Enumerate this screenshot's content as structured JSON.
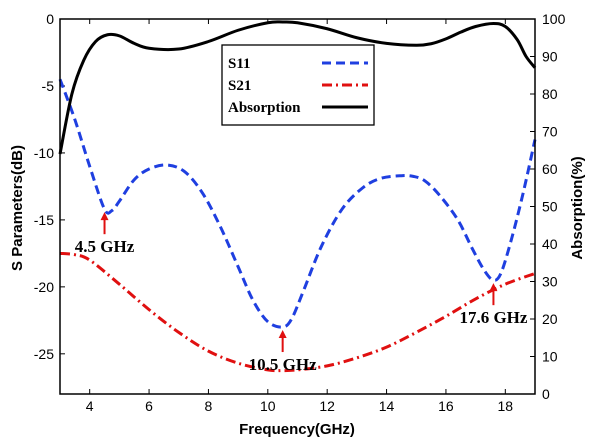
{
  "chart_data": {
    "type": "line",
    "xlabel": "Frequency(GHz)",
    "ylabel_left": "S Parameters(dB)",
    "ylabel_right": "Absorption(%)",
    "xlim": [
      3,
      19
    ],
    "ylim_left": [
      -28,
      0
    ],
    "ylim_right": [
      0,
      100
    ],
    "x_ticks": [
      4,
      6,
      8,
      10,
      12,
      14,
      16,
      18
    ],
    "y_left_ticks": [
      0,
      -5,
      -10,
      -15,
      -20,
      -25
    ],
    "y_right_ticks": [
      0,
      10,
      20,
      30,
      40,
      50,
      60,
      70,
      80,
      90,
      100
    ],
    "grid": false,
    "legend_placement": "top-center",
    "series": [
      {
        "name": "S11",
        "axis": "left",
        "color": "#1f3fe0",
        "style": "dashed",
        "x": [
          3.0,
          3.5,
          4.0,
          4.5,
          4.75,
          5.0,
          5.5,
          6.0,
          6.6,
          7.2,
          7.8,
          8.4,
          9.0,
          9.5,
          10.0,
          10.5,
          10.8,
          11.2,
          11.8,
          12.5,
          13.2,
          13.8,
          14.5,
          14.9,
          15.3,
          15.8,
          16.4,
          16.9,
          17.3,
          17.6,
          17.85,
          18.2,
          18.6,
          19.0
        ],
        "y": [
          -4.5,
          -7.5,
          -11.0,
          -14.2,
          -14.3,
          -13.6,
          -12.0,
          -11.2,
          -10.9,
          -11.4,
          -13.0,
          -15.5,
          -18.5,
          -21.0,
          -22.6,
          -23.0,
          -22.4,
          -20.3,
          -17.0,
          -14.2,
          -12.6,
          -11.9,
          -11.7,
          -11.75,
          -12.1,
          -13.2,
          -15.0,
          -17.2,
          -18.8,
          -19.5,
          -19.0,
          -16.5,
          -13.0,
          -9.0
        ]
      },
      {
        "name": "S21",
        "axis": "left",
        "color": "#e01010",
        "style": "dash-dot",
        "x": [
          3.0,
          3.5,
          4.0,
          5.0,
          6.0,
          7.0,
          8.0,
          9.0,
          10.0,
          10.5,
          11.0,
          12.0,
          13.0,
          14.0,
          15.0,
          16.0,
          17.0,
          18.0,
          19.0
        ],
        "y": [
          -17.5,
          -17.6,
          -18.0,
          -19.8,
          -21.7,
          -23.4,
          -24.8,
          -25.7,
          -26.2,
          -26.25,
          -26.2,
          -25.9,
          -25.3,
          -24.5,
          -23.4,
          -22.2,
          -20.9,
          -19.8,
          -19.0
        ]
      },
      {
        "name": "Absorption",
        "axis": "right",
        "color": "#000000",
        "style": "solid",
        "x": [
          3.0,
          3.4,
          3.8,
          4.2,
          4.6,
          5.0,
          5.5,
          6.0,
          7.0,
          8.0,
          9.0,
          10.0,
          10.5,
          11.0,
          12.0,
          13.0,
          14.0,
          15.0,
          15.5,
          16.0,
          16.5,
          17.0,
          17.6,
          18.0,
          18.4,
          18.7,
          19.0
        ],
        "y": [
          64.0,
          80.0,
          89.0,
          94.0,
          95.8,
          95.5,
          93.5,
          92.2,
          92.0,
          94.0,
          97.0,
          99.0,
          99.2,
          99.0,
          97.4,
          95.0,
          93.5,
          93.0,
          93.4,
          94.7,
          96.5,
          98.0,
          98.8,
          98.0,
          94.5,
          90.0,
          87.0
        ]
      }
    ],
    "annotations": [
      {
        "text": "4.5 GHz",
        "x": 4.5,
        "y": -14.2
      },
      {
        "text": "10.5 GHz",
        "x": 10.5,
        "y": -23.0
      },
      {
        "text": "17.6 GHz",
        "x": 17.6,
        "y": -19.5
      }
    ],
    "annotation_color": "#e01010"
  }
}
